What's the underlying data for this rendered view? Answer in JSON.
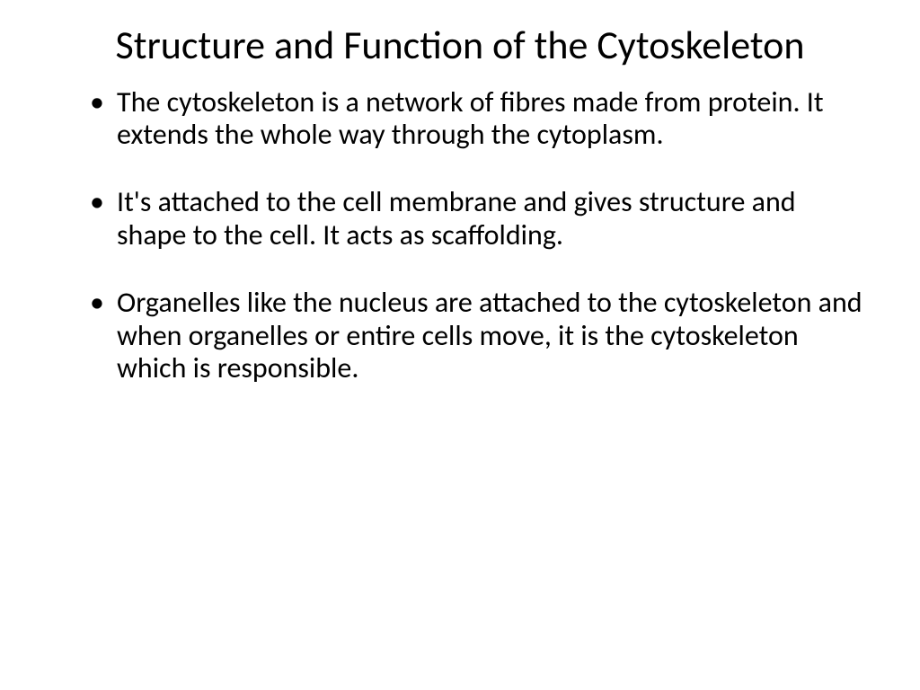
{
  "slide": {
    "title": "Structure and Function of the Cytoskeleton",
    "bullets": [
      "The cytoskeleton is a network of fibres made from protein. It extends the whole way through the cytoplasm.",
      "It's attached to the cell membrane and gives structure and shape to the cell. It acts as scaffolding.",
      "Organelles like the nucleus are attached to the cytoskeleton and when organelles or entire cells move, it is the cytoskeleton which is responsible."
    ],
    "background_color": "#ffffff",
    "text_color": "#000000",
    "title_fontsize": 44,
    "body_fontsize": 32,
    "font_family": "Calibri"
  }
}
